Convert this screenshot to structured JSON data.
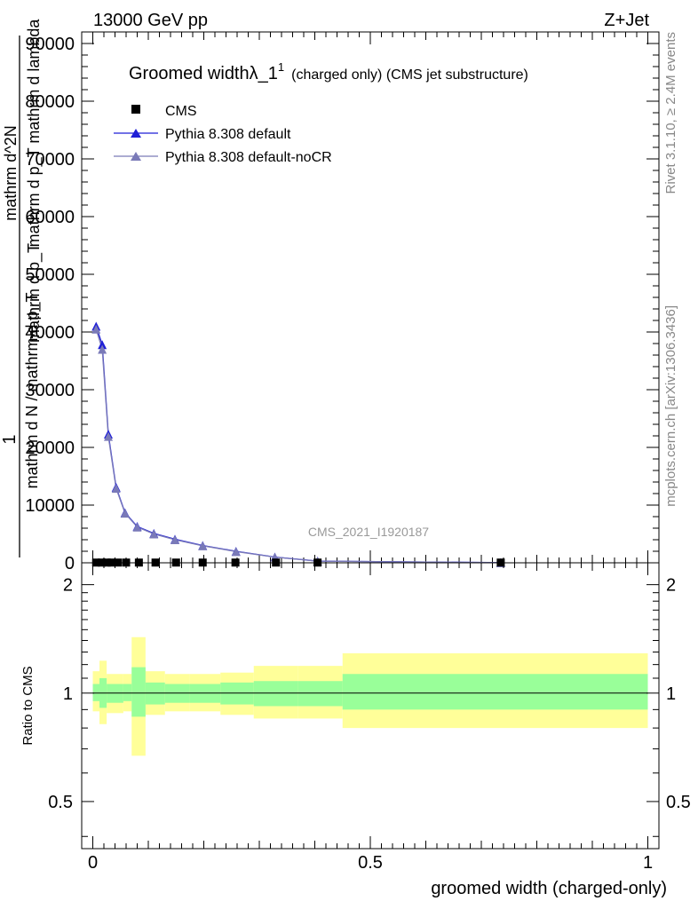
{
  "header": {
    "left": "13000 GeV pp",
    "right": "Z+Jet"
  },
  "side_labels": {
    "rivet": "Rivet 3.1.10, ≥ 2.4M events",
    "mcplots": "mcplots.cern.ch [arXiv:1306.3436]"
  },
  "analysis_id": "CMS_2021_I1920187",
  "chart_data": [
    {
      "type": "line",
      "title": "Groomed widthλ_1",
      "title_sup": "1",
      "subtitle": "(charged only) (CMS jet substructure)",
      "ylabel": "1 / mathrm d N / mathrm d p_T mathrm d^2N / mathrm d p_T mathrm d lambda",
      "ylim": [
        0,
        92000
      ],
      "xlim": [
        -0.02,
        1.02
      ],
      "yticks": [
        0,
        10000,
        20000,
        30000,
        40000,
        50000,
        60000,
        70000,
        80000,
        90000
      ],
      "ytick_labels": [
        "0",
        "10000",
        "20000",
        "30000",
        "40000",
        "50000",
        "60000",
        "70000",
        "80000",
        "90000"
      ],
      "legend": [
        "CMS",
        "Pythia 8.308 default",
        "Pythia 8.308 default-noCR"
      ],
      "legend_position": "top-left",
      "series": [
        {
          "name": "CMS",
          "marker": "square",
          "color": "#000000",
          "x": [
            0.006,
            0.016,
            0.025,
            0.034,
            0.045,
            0.06,
            0.083,
            0.113,
            0.15,
            0.198,
            0.257,
            0.33,
            0.405,
            0.735
          ],
          "values": [
            40,
            40,
            40,
            40,
            40,
            40,
            40,
            40,
            40,
            40,
            40,
            40,
            40,
            40
          ]
        },
        {
          "name": "Pythia 8.308 default",
          "marker": "triangle",
          "color": "#1f1fd6",
          "x": [
            0.006,
            0.017,
            0.028,
            0.042,
            0.058,
            0.08,
            0.11,
            0.148,
            0.198,
            0.258,
            0.328,
            0.405,
            0.735
          ],
          "values": [
            41000,
            37800,
            22300,
            13100,
            8700,
            6300,
            5100,
            4100,
            3000,
            2000,
            1000,
            300,
            30
          ]
        },
        {
          "name": "Pythia 8.308 default-noCR",
          "marker": "triangle",
          "color": "#7a7ab8",
          "x": [
            0.006,
            0.017,
            0.028,
            0.042,
            0.058,
            0.08,
            0.11,
            0.148,
            0.198,
            0.258,
            0.328,
            0.405,
            0.735
          ],
          "values": [
            40500,
            37000,
            21900,
            12900,
            8600,
            6200,
            5000,
            4000,
            2950,
            1950,
            980,
            290,
            30
          ]
        }
      ]
    },
    {
      "type": "area",
      "xlabel": "groomed width (charged-only)",
      "ylabel": "Ratio to CMS",
      "ylim": [
        0.37,
        2.3
      ],
      "log_y": true,
      "xlim": [
        -0.02,
        1.02
      ],
      "xticks": [
        0,
        0.5,
        1
      ],
      "xtick_labels": [
        "0",
        "0.5",
        "1"
      ],
      "yticks": [
        0.5,
        1,
        2
      ],
      "ytick_labels": [
        "0.5",
        "1",
        "2"
      ],
      "reference_line": 1,
      "bins": [
        {
          "x": [
            0.0,
            0.012
          ],
          "inner": [
            0.95,
            1.06
          ],
          "outer": [
            0.89,
            1.15
          ]
        },
        {
          "x": [
            0.012,
            0.025
          ],
          "inner": [
            0.91,
            1.1
          ],
          "outer": [
            0.82,
            1.23
          ]
        },
        {
          "x": [
            0.025,
            0.04
          ],
          "inner": [
            0.94,
            1.06
          ],
          "outer": [
            0.88,
            1.13
          ]
        },
        {
          "x": [
            0.04,
            0.055
          ],
          "inner": [
            0.94,
            1.06
          ],
          "outer": [
            0.88,
            1.13
          ]
        },
        {
          "x": [
            0.055,
            0.07
          ],
          "inner": [
            0.95,
            1.06
          ],
          "outer": [
            0.89,
            1.13
          ]
        },
        {
          "x": [
            0.07,
            0.095
          ],
          "inner": [
            0.86,
            1.18
          ],
          "outer": [
            0.67,
            1.43
          ]
        },
        {
          "x": [
            0.095,
            0.13
          ],
          "inner": [
            0.93,
            1.07
          ],
          "outer": [
            0.87,
            1.15
          ]
        },
        {
          "x": [
            0.13,
            0.175
          ],
          "inner": [
            0.94,
            1.06
          ],
          "outer": [
            0.89,
            1.13
          ]
        },
        {
          "x": [
            0.175,
            0.23
          ],
          "inner": [
            0.94,
            1.06
          ],
          "outer": [
            0.89,
            1.13
          ]
        },
        {
          "x": [
            0.23,
            0.29
          ],
          "inner": [
            0.93,
            1.07
          ],
          "outer": [
            0.87,
            1.14
          ]
        },
        {
          "x": [
            0.29,
            0.37
          ],
          "inner": [
            0.92,
            1.08
          ],
          "outer": [
            0.85,
            1.19
          ]
        },
        {
          "x": [
            0.37,
            0.45
          ],
          "inner": [
            0.92,
            1.08
          ],
          "outer": [
            0.85,
            1.19
          ]
        },
        {
          "x": [
            0.45,
            1.0
          ],
          "inner": [
            0.9,
            1.13
          ],
          "outer": [
            0.8,
            1.29
          ]
        }
      ]
    }
  ]
}
